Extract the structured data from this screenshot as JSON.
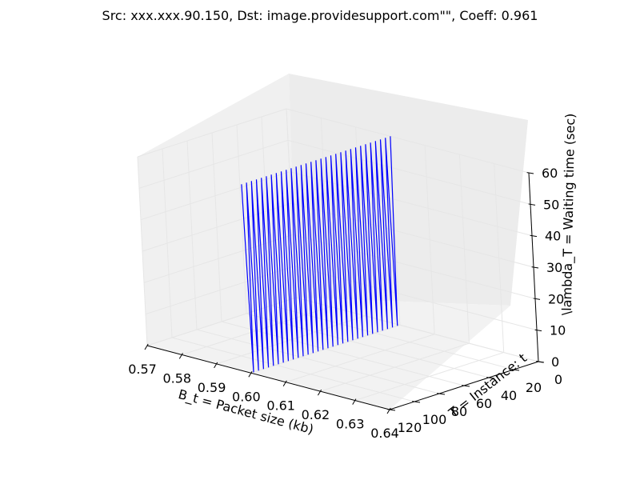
{
  "chart_data": {
    "type": "line",
    "projection": "3d",
    "title": "Src: xxx.xxx.90.150, Dst: image.providesupport.com\"\", Coeff: 0.961",
    "xlabel": "B_t = Packet size (kb)",
    "ylabel": "T = Instance: t",
    "zlabel": "\\lambda_T = Waiting time (sec)",
    "xlim": [
      0.57,
      0.64
    ],
    "ylim": [
      0,
      120
    ],
    "zlim": [
      0,
      60
    ],
    "x_ticks": [
      "0.57",
      "0.58",
      "0.59",
      "0.60",
      "0.61",
      "0.62",
      "0.63",
      "0.64"
    ],
    "y_ticks": [
      "0",
      "20",
      "40",
      "60",
      "80",
      "100",
      "120"
    ],
    "z_ticks": [
      "0",
      "10",
      "20",
      "30",
      "40",
      "50",
      "60"
    ],
    "grid": true,
    "series": [
      {
        "color": "#0000ff",
        "x_constant": 0.6,
        "instance_range": [
          0,
          120
        ],
        "z_pattern": "sawtooth",
        "cycles": 30,
        "z_low": 0,
        "z_high": 60
      }
    ]
  }
}
